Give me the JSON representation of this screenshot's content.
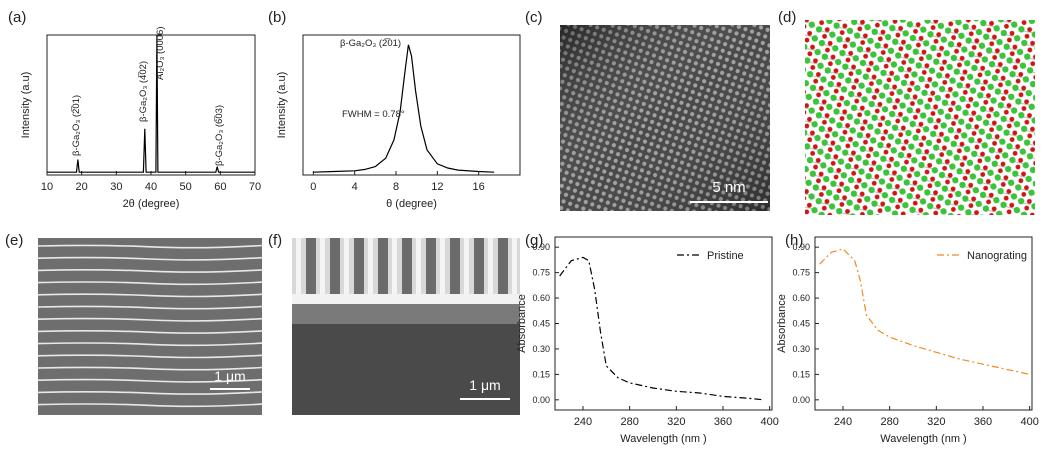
{
  "panels": {
    "labels": [
      "(a)",
      "(b)",
      "(c)",
      "(d)",
      "(e)",
      "(f)",
      "(g)",
      "(h)"
    ],
    "scale_bars": [
      "5 nm",
      "1 μm",
      "1 μm"
    ]
  },
  "chart_data": [
    {
      "type": "line",
      "xlabel": "2θ (degree)",
      "ylabel": "Intensity (a.u)",
      "xlim": [
        10,
        70
      ],
      "ylim": [
        0,
        100
      ],
      "xticks": [
        10,
        20,
        30,
        40,
        50,
        60,
        70
      ],
      "annotations": [
        "β-Ga₂O₃ (2̅01)",
        "β-Ga₂O₃ (4̅02)",
        "Al₂O₃ (0006)",
        "β-Ga₂O₃ (6̅03)"
      ],
      "x": [
        10,
        18.5,
        18.9,
        19.3,
        37.8,
        38.2,
        38.6,
        41.4,
        41.7,
        42.0,
        58.7,
        59.1,
        59.5,
        70
      ],
      "series": [
        {
          "color": "#000000",
          "values": [
            2,
            2,
            11,
            2,
            2,
            33,
            2,
            2,
            100,
            2,
            2,
            6,
            2,
            2
          ]
        }
      ]
    },
    {
      "type": "line",
      "xlabel": "θ (degree)",
      "ylabel": "Intensity (a.u)",
      "xlim": [
        -1,
        20
      ],
      "ylim": [
        0,
        100
      ],
      "xticks": [
        0,
        4,
        8,
        12,
        16
      ],
      "annotations": [
        "β-Ga₂O₃ (2̅01)",
        "FWHM = 0.78°"
      ],
      "x": [
        0,
        2,
        4,
        5,
        6,
        7,
        7.8,
        8.4,
        8.8,
        9.2,
        9.5,
        9.9,
        10.4,
        11,
        12,
        13,
        14,
        16,
        17.5
      ],
      "series": [
        {
          "color": "#000000",
          "values": [
            2,
            2.5,
            3,
            4,
            6,
            12,
            25,
            45,
            70,
            93,
            85,
            60,
            35,
            18,
            8,
            5,
            3.5,
            2.5,
            2
          ]
        }
      ]
    },
    {
      "type": "line",
      "xlabel": "Wavelength (nm )",
      "ylabel": "Absorbance",
      "xlim": [
        216,
        402
      ],
      "ylim": [
        -0.06,
        0.96
      ],
      "xticks": [
        240,
        280,
        320,
        360,
        400
      ],
      "yticks": [
        {
          "value": 0,
          "label": "0.00"
        },
        {
          "value": 0.15,
          "label": "0.15"
        },
        {
          "value": 0.3,
          "label": "0.30"
        },
        {
          "value": 0.45,
          "label": "0.45"
        },
        {
          "value": 0.6,
          "label": "0.60"
        },
        {
          "value": 0.75,
          "label": "0.75"
        },
        {
          "value": 0.9,
          "label": "0.90"
        }
      ],
      "legend": "upper right",
      "x": [
        220,
        230,
        240,
        245,
        250,
        255,
        260,
        270,
        280,
        300,
        320,
        340,
        360,
        380,
        395
      ],
      "series": [
        {
          "name": "Pristine",
          "color": "#000000",
          "line_style": "dash-dot",
          "values": [
            0.73,
            0.82,
            0.84,
            0.82,
            0.65,
            0.4,
            0.2,
            0.13,
            0.1,
            0.07,
            0.05,
            0.04,
            0.02,
            0.01,
            0
          ]
        }
      ]
    },
    {
      "type": "line",
      "xlabel": "Wavelength (nm )",
      "ylabel": "Absorbance",
      "xlim": [
        216,
        402
      ],
      "ylim": [
        -0.06,
        0.96
      ],
      "xticks": [
        240,
        280,
        320,
        360,
        400
      ],
      "yticks": [
        {
          "value": 0,
          "label": "0.00"
        },
        {
          "value": 0.15,
          "label": "0.15"
        },
        {
          "value": 0.3,
          "label": "0.30"
        },
        {
          "value": 0.45,
          "label": "0.45"
        },
        {
          "value": 0.6,
          "label": "0.60"
        },
        {
          "value": 0.75,
          "label": "0.75"
        },
        {
          "value": 0.9,
          "label": "0.90"
        }
      ],
      "legend": "upper right",
      "x": [
        220,
        230,
        240,
        250,
        255,
        260,
        270,
        280,
        300,
        320,
        340,
        360,
        380,
        400
      ],
      "series": [
        {
          "name": "Nanograting",
          "color": "#f08a24",
          "line_style": "dash-dot",
          "values": [
            0.8,
            0.87,
            0.89,
            0.82,
            0.7,
            0.5,
            0.41,
            0.37,
            0.32,
            0.28,
            0.24,
            0.21,
            0.18,
            0.15
          ]
        }
      ]
    }
  ]
}
